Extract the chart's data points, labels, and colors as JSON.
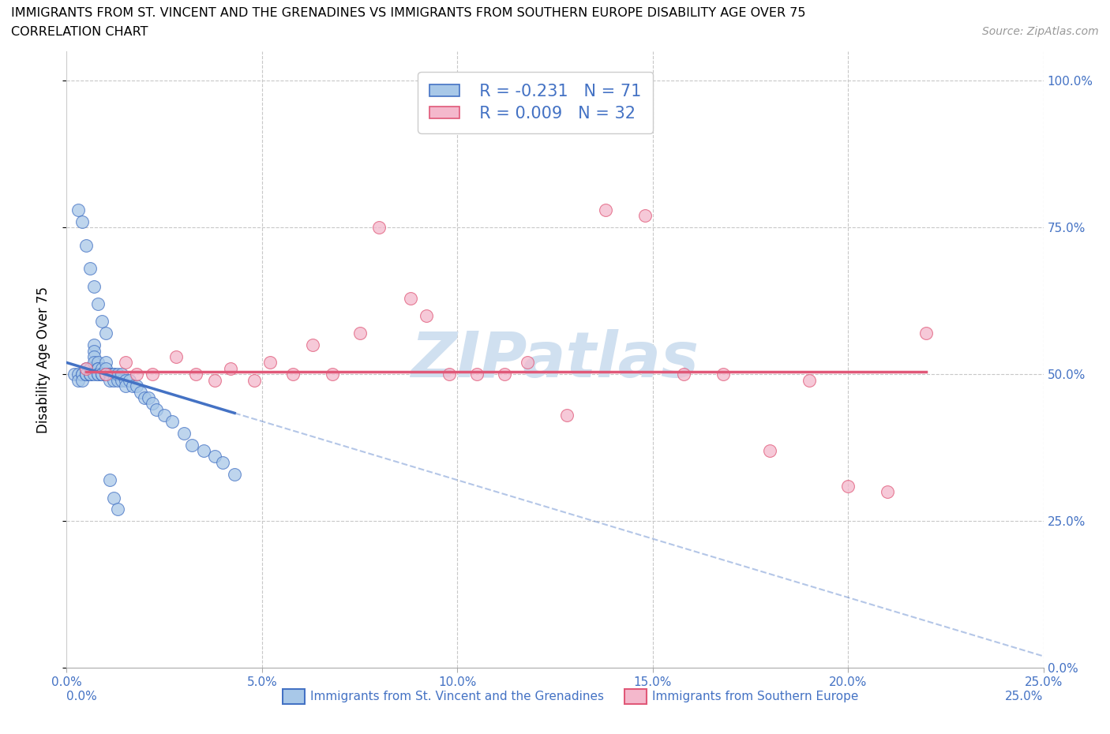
{
  "title_line1": "IMMIGRANTS FROM ST. VINCENT AND THE GRENADINES VS IMMIGRANTS FROM SOUTHERN EUROPE DISABILITY AGE OVER 75",
  "title_line2": "CORRELATION CHART",
  "source_text": "Source: ZipAtlas.com",
  "ylabel": "Disability Age Over 75",
  "legend_label1": "Immigrants from St. Vincent and the Grenadines",
  "legend_label2": "Immigrants from Southern Europe",
  "legend_r1": "R = -0.231",
  "legend_n1": "N = 71",
  "legend_r2": "R = 0.009",
  "legend_n2": "N = 32",
  "xlim": [
    0.0,
    0.25
  ],
  "ylim": [
    0.0,
    1.05
  ],
  "color_blue": "#a8c8e8",
  "color_pink": "#f4b8cc",
  "color_blue_line": "#4472c4",
  "color_pink_line": "#e05878",
  "color_blue_text": "#4472c4",
  "watermark_color": "#d0e0f0",
  "grid_color": "#c8c8c8",
  "blue_x": [
    0.002,
    0.003,
    0.003,
    0.004,
    0.004,
    0.004,
    0.005,
    0.005,
    0.005,
    0.005,
    0.006,
    0.006,
    0.006,
    0.006,
    0.007,
    0.007,
    0.007,
    0.007,
    0.007,
    0.008,
    0.008,
    0.008,
    0.008,
    0.008,
    0.009,
    0.009,
    0.009,
    0.009,
    0.01,
    0.01,
    0.01,
    0.01,
    0.011,
    0.011,
    0.011,
    0.012,
    0.012,
    0.012,
    0.013,
    0.013,
    0.014,
    0.014,
    0.015,
    0.015,
    0.016,
    0.017,
    0.018,
    0.019,
    0.02,
    0.021,
    0.022,
    0.023,
    0.025,
    0.027,
    0.03,
    0.032,
    0.035,
    0.038,
    0.04,
    0.043,
    0.003,
    0.004,
    0.005,
    0.006,
    0.007,
    0.008,
    0.009,
    0.01,
    0.011,
    0.012,
    0.013
  ],
  "blue_y": [
    0.5,
    0.5,
    0.49,
    0.5,
    0.5,
    0.49,
    0.5,
    0.51,
    0.5,
    0.5,
    0.51,
    0.5,
    0.5,
    0.5,
    0.55,
    0.54,
    0.53,
    0.52,
    0.5,
    0.52,
    0.51,
    0.51,
    0.5,
    0.5,
    0.51,
    0.5,
    0.5,
    0.5,
    0.5,
    0.52,
    0.51,
    0.5,
    0.5,
    0.5,
    0.49,
    0.5,
    0.5,
    0.49,
    0.49,
    0.5,
    0.49,
    0.5,
    0.49,
    0.48,
    0.49,
    0.48,
    0.48,
    0.47,
    0.46,
    0.46,
    0.45,
    0.44,
    0.43,
    0.42,
    0.4,
    0.38,
    0.37,
    0.36,
    0.35,
    0.33,
    0.78,
    0.76,
    0.72,
    0.68,
    0.65,
    0.62,
    0.59,
    0.57,
    0.32,
    0.29,
    0.27
  ],
  "pink_x": [
    0.005,
    0.01,
    0.015,
    0.018,
    0.022,
    0.028,
    0.033,
    0.038,
    0.042,
    0.048,
    0.052,
    0.058,
    0.063,
    0.068,
    0.075,
    0.08,
    0.088,
    0.092,
    0.098,
    0.105,
    0.112,
    0.118,
    0.128,
    0.138,
    0.148,
    0.158,
    0.168,
    0.18,
    0.19,
    0.2,
    0.21,
    0.22
  ],
  "pink_y": [
    0.51,
    0.5,
    0.52,
    0.5,
    0.5,
    0.53,
    0.5,
    0.49,
    0.51,
    0.49,
    0.52,
    0.5,
    0.55,
    0.5,
    0.57,
    0.75,
    0.63,
    0.6,
    0.5,
    0.5,
    0.5,
    0.52,
    0.43,
    0.78,
    0.77,
    0.5,
    0.5,
    0.37,
    0.49,
    0.31,
    0.3,
    0.57
  ]
}
